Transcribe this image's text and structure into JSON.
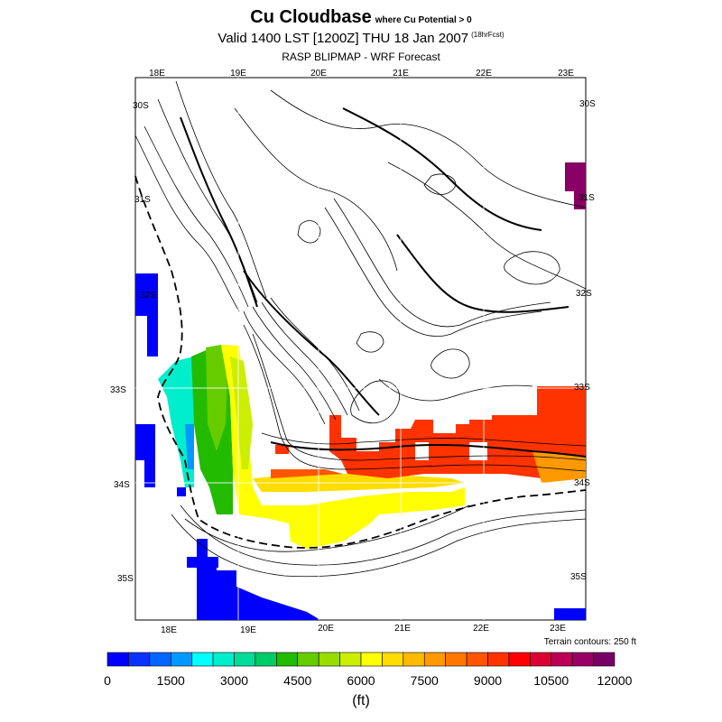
{
  "header": {
    "title": "Cu Cloudbase",
    "title_suffix": "where Cu Potential > 0",
    "valid_line": "Valid 1400 LST [1200Z] THU 18 Jan 2007",
    "forecast_hours": "(18hrFcst)",
    "model_line": "RASP BLIPMAP - WRF Forecast"
  },
  "map": {
    "lon_labels_top": [
      "18E",
      "19E",
      "20E",
      "21E",
      "22E",
      "23E"
    ],
    "lon_labels_bottom": [
      "18E",
      "19E",
      "20E",
      "21E",
      "22E",
      "23E"
    ],
    "lat_labels_left": [
      "30S",
      "31S",
      "32S",
      "33S",
      "34S",
      "35S"
    ],
    "lat_labels_right": [
      "30S",
      "31S",
      "32S",
      "33S",
      "34S",
      "35S"
    ],
    "terrain_note": "Terrain contours: 250 ft"
  },
  "colorbar": {
    "colors": [
      "#0000ff",
      "#0a32ff",
      "#0066ff",
      "#0099ff",
      "#00ffff",
      "#00eecc",
      "#00dd99",
      "#00cc66",
      "#22bb00",
      "#66cc00",
      "#99dd00",
      "#ccee00",
      "#ffff00",
      "#ffdd00",
      "#ffbb00",
      "#ff9900",
      "#ff7700",
      "#ff5500",
      "#ff3300",
      "#ff0000",
      "#dd0033",
      "#bb0055",
      "#990066",
      "#770066"
    ],
    "tick_labels": [
      "0",
      "1500",
      "3000",
      "4500",
      "6000",
      "7500",
      "9000",
      "10500",
      "12000"
    ],
    "unit": "(ft)"
  }
}
